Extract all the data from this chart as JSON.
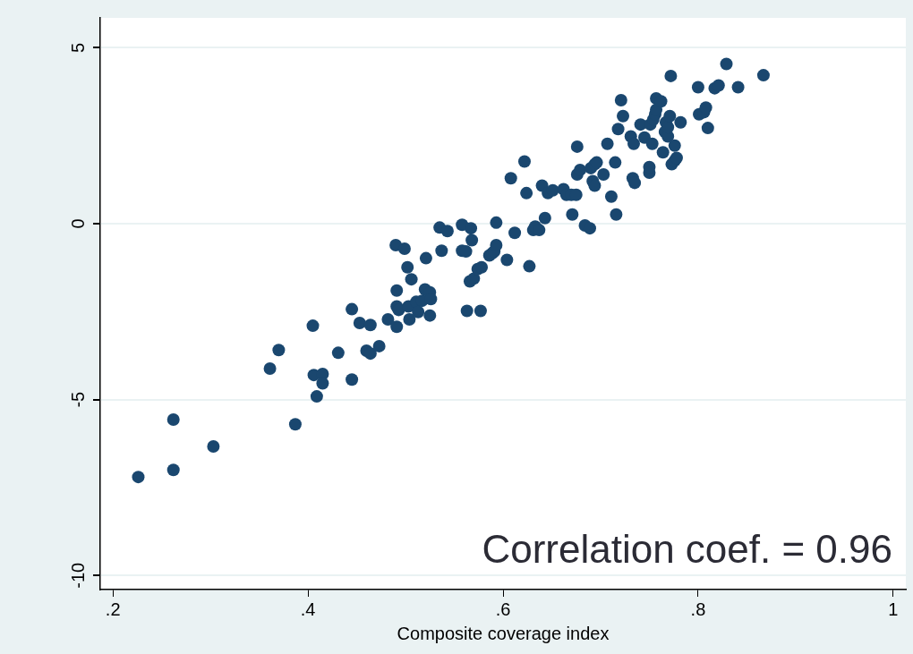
{
  "chart_data": {
    "type": "scatter",
    "xlabel": "Composite coverage index",
    "color": "#1a476f",
    "marker": "circle",
    "grid": "y",
    "xlim": [
      0.187,
      1.013
    ],
    "ylim": [
      -10.4,
      5.85
    ],
    "xticks": [
      {
        "value": 0.2,
        "label": ".2"
      },
      {
        "value": 0.4,
        "label": ".4"
      },
      {
        "value": 0.6,
        "label": ".6"
      },
      {
        "value": 0.8,
        "label": ".8"
      },
      1
    ],
    "yticks": [
      -10,
      -5,
      0,
      5
    ],
    "annotations": [
      "Correlation coef. = 0.96"
    ],
    "x": [
      0.226,
      0.262,
      0.262,
      0.303,
      0.361,
      0.37,
      0.387,
      0.405,
      0.406,
      0.409,
      0.415,
      0.415,
      0.431,
      0.445,
      0.445,
      0.453,
      0.46,
      0.464,
      0.464,
      0.473,
      0.482,
      0.49,
      0.491,
      0.491,
      0.491,
      0.493,
      0.499,
      0.502,
      0.503,
      0.504,
      0.506,
      0.511,
      0.513,
      0.517,
      0.52,
      0.521,
      0.525,
      0.525,
      0.526,
      0.535,
      0.537,
      0.543,
      0.558,
      0.558,
      0.562,
      0.563,
      0.566,
      0.567,
      0.568,
      0.57,
      0.574,
      0.577,
      0.578,
      0.586,
      0.589,
      0.591,
      0.593,
      0.593,
      0.604,
      0.608,
      0.612,
      0.622,
      0.624,
      0.627,
      0.631,
      0.633,
      0.637,
      0.64,
      0.643,
      0.646,
      0.651,
      0.662,
      0.665,
      0.67,
      0.671,
      0.675,
      0.676,
      0.676,
      0.679,
      0.684,
      0.689,
      0.69,
      0.692,
      0.694,
      0.694,
      0.696,
      0.703,
      0.707,
      0.711,
      0.715,
      0.716,
      0.718,
      0.721,
      0.723,
      0.731,
      0.733,
      0.734,
      0.735,
      0.741,
      0.745,
      0.75,
      0.75,
      0.751,
      0.753,
      0.754,
      0.756,
      0.757,
      0.757,
      0.762,
      0.764,
      0.766,
      0.767,
      0.769,
      0.769,
      0.771,
      0.772,
      0.773,
      0.776,
      0.776,
      0.778,
      0.782,
      0.8,
      0.801,
      0.806,
      0.808,
      0.81,
      0.817,
      0.821,
      0.829,
      0.841,
      0.867
    ],
    "values": [
      -7.2,
      -5.57,
      -7.0,
      -6.33,
      -4.12,
      -3.59,
      -5.7,
      -2.9,
      -4.3,
      -4.91,
      -4.27,
      -4.54,
      -3.67,
      -2.43,
      -4.43,
      -2.82,
      -3.61,
      -2.88,
      -3.69,
      -3.48,
      -2.72,
      -0.61,
      -1.9,
      -2.35,
      -2.93,
      -2.45,
      -0.71,
      -1.24,
      -2.35,
      -2.72,
      -1.58,
      -2.22,
      -2.51,
      -2.19,
      -1.87,
      -0.98,
      -1.95,
      -2.61,
      -2.14,
      -0.11,
      -0.77,
      -0.21,
      -0.03,
      -0.77,
      -0.79,
      -2.48,
      -1.64,
      -0.13,
      -0.47,
      -1.56,
      -1.29,
      -2.48,
      -1.24,
      -0.9,
      -0.84,
      -0.79,
      0.03,
      -0.61,
      -1.03,
      1.29,
      -0.26,
      1.77,
      0.87,
      -1.21,
      -0.18,
      -0.08,
      -0.18,
      1.08,
      0.16,
      0.87,
      0.95,
      0.98,
      0.82,
      0.82,
      0.26,
      0.82,
      2.19,
      1.4,
      1.53,
      -0.05,
      -0.13,
      1.58,
      1.21,
      1.69,
      1.08,
      1.74,
      1.4,
      2.27,
      0.77,
      1.74,
      0.26,
      2.69,
      3.51,
      3.06,
      2.48,
      1.29,
      2.27,
      1.16,
      2.82,
      2.45,
      1.45,
      1.61,
      2.82,
      2.27,
      2.96,
      3.11,
      3.56,
      3.24,
      3.48,
      2.03,
      2.61,
      2.88,
      2.48,
      2.74,
      3.06,
      4.2,
      1.69,
      2.22,
      1.79,
      1.87,
      2.88,
      3.88,
      3.11,
      3.17,
      3.3,
      2.72,
      3.85,
      3.93,
      4.54,
      3.88,
      4.22
    ]
  }
}
